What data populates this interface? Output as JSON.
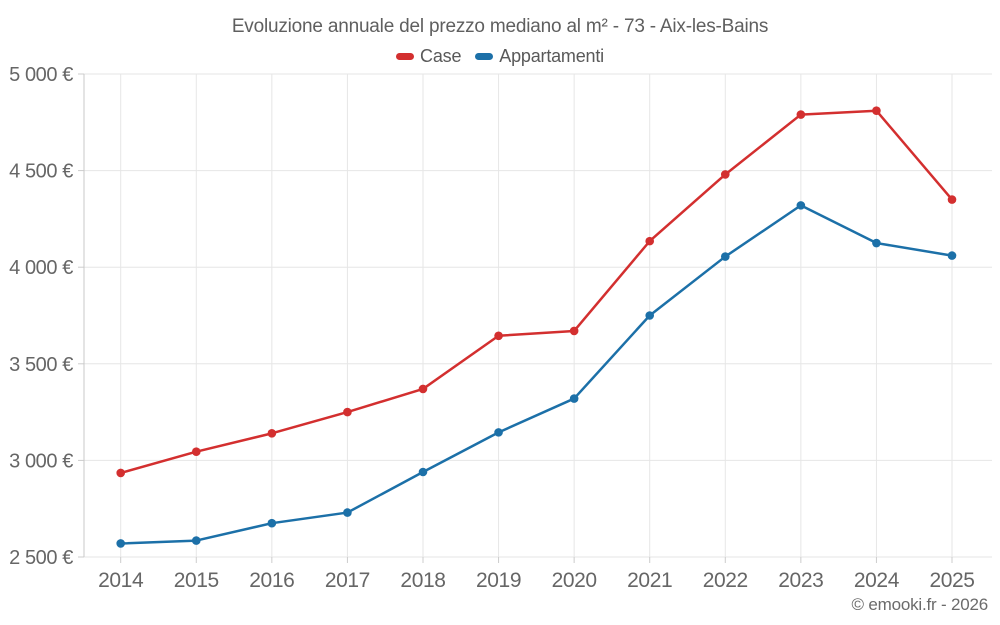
{
  "title": "Evoluzione annuale del prezzo mediano al m² - 73 - Aix-les-Bains",
  "legend": [
    {
      "label": "Case",
      "color": "#d32f2f"
    },
    {
      "label": "Appartamenti",
      "color": "#1c70a8"
    }
  ],
  "copyright": "© emooki.fr - 2026",
  "chart_data": {
    "type": "line",
    "title": "Evoluzione annuale del prezzo mediano al m² - 73 - Aix-les-Bains",
    "x": [
      2014,
      2015,
      2016,
      2017,
      2018,
      2019,
      2020,
      2021,
      2022,
      2023,
      2024,
      2025
    ],
    "series": [
      {
        "name": "Case",
        "color": "#d32f2f",
        "values": [
          2935,
          3045,
          3140,
          3250,
          3370,
          3645,
          3670,
          4135,
          4480,
          4790,
          4810,
          4350
        ]
      },
      {
        "name": "Appartamenti",
        "color": "#1c70a8",
        "values": [
          2570,
          2585,
          2675,
          2730,
          2940,
          3145,
          3320,
          3750,
          4055,
          4320,
          4125,
          4060
        ]
      }
    ],
    "xlabel": "",
    "ylabel": "",
    "ylim": [
      2500,
      5000
    ],
    "y_tick_values": [
      2500,
      3000,
      3500,
      4000,
      4500,
      5000
    ],
    "y_tick_labels": [
      "2 500 €",
      "3 000 €",
      "3 500 €",
      "4 000 €",
      "4 500 €",
      "5 000 €"
    ],
    "grid": true,
    "legend_position": "top",
    "currency": "€"
  }
}
